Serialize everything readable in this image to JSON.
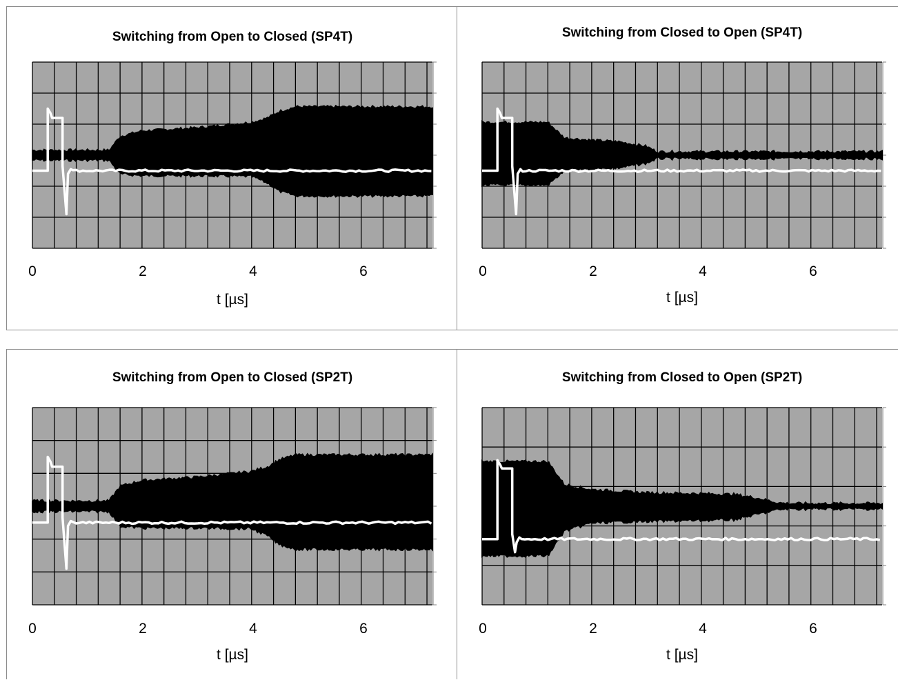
{
  "chart_data": [
    {
      "type": "line",
      "title": "Switching from Open to Closed (SP4T)",
      "xlabel": "t [µs]",
      "xticks": [
        "0",
        "2",
        "4",
        "6"
      ],
      "xlim": [
        0,
        7.3
      ],
      "grid": true,
      "series": [
        {
          "color": "#000000",
          "envelope": {
            "t": [
              0,
              1.4,
              1.6,
              2,
              3,
              4,
              4.3,
              4.5,
              4.8,
              7.3
            ],
            "upper": [
              0.3,
              0.3,
              1.2,
              1.55,
              1.75,
              2.1,
              2.4,
              2.8,
              3.1,
              3.1
            ],
            "lower": [
              -0.3,
              -0.3,
              -1.2,
              -1.3,
              -1.3,
              -1.35,
              -1.8,
              -2.3,
              -2.6,
              -2.6
            ]
          }
        },
        {
          "color": "#ffffff",
          "pulse": {
            "base": -1.0,
            "rise": 0.28,
            "fall": 0.55,
            "overshoot": 3.0,
            "plateau": 2.4,
            "undershoot": -3.8,
            "undershoot_t": 0.62
          }
        }
      ]
    },
    {
      "type": "line",
      "title": "Switching from Closed to Open (SP4T)",
      "xlabel": "t [µs]",
      "xticks": [
        "0",
        "2",
        "4",
        "6"
      ],
      "xlim": [
        0,
        7.3
      ],
      "grid": true,
      "series": [
        {
          "color": "#000000",
          "envelope": {
            "t": [
              0,
              1.2,
              1.5,
              2,
              2.5,
              3,
              3.2,
              7.3
            ],
            "upper": [
              2.1,
              2.1,
              1.1,
              0.95,
              0.85,
              0.55,
              0.2,
              0.2
            ],
            "lower": [
              -1.9,
              -1.9,
              -1.0,
              -0.9,
              -0.8,
              -0.5,
              -0.2,
              -0.2
            ]
          }
        },
        {
          "color": "#ffffff",
          "pulse": {
            "base": -1.0,
            "rise": 0.28,
            "fall": 0.55,
            "overshoot": 3.0,
            "plateau": 2.4,
            "undershoot": -3.8,
            "undershoot_t": 0.62
          }
        }
      ]
    },
    {
      "type": "line",
      "title": "Switching from Open to Closed (SP2T)",
      "xlabel": "t [µs]",
      "xticks": [
        "0",
        "2",
        "4",
        "6"
      ],
      "xlim": [
        0,
        7.3
      ],
      "grid": true,
      "series": [
        {
          "color": "#000000",
          "envelope": {
            "t": [
              0,
              1.4,
              1.6,
              2,
              3,
              4,
              4.3,
              4.5,
              4.8,
              7.3
            ],
            "upper": [
              0.3,
              0.3,
              1.2,
              1.55,
              1.75,
              2.1,
              2.4,
              2.8,
              3.1,
              3.1
            ],
            "lower": [
              -0.3,
              -0.3,
              -1.2,
              -1.3,
              -1.3,
              -1.35,
              -1.8,
              -2.3,
              -2.6,
              -2.6
            ]
          }
        },
        {
          "color": "#ffffff",
          "pulse": {
            "base": -1.0,
            "rise": 0.28,
            "fall": 0.55,
            "overshoot": 3.0,
            "plateau": 2.4,
            "undershoot": -3.8,
            "undershoot_t": 0.62
          }
        }
      ]
    },
    {
      "type": "line",
      "title": "Switching from Closed to Open (SP2T)",
      "xlabel": "t [µs]",
      "xticks": [
        "0",
        "2",
        "4",
        "6"
      ],
      "xlim": [
        0,
        7.3
      ],
      "grid": true,
      "series": [
        {
          "color": "#000000",
          "envelope": {
            "t": [
              0,
              1.2,
              1.5,
              2,
              3,
              4,
              4.6,
              5,
              5.4,
              5.6,
              7.3
            ],
            "upper": [
              2.7,
              2.7,
              1.3,
              1.0,
              0.8,
              0.75,
              0.7,
              0.5,
              0.2,
              0.15,
              0.15
            ],
            "lower": [
              -3.0,
              -3.0,
              -1.5,
              -1.0,
              -0.9,
              -0.85,
              -0.8,
              -0.5,
              -0.2,
              -0.15,
              -0.15
            ]
          }
        },
        {
          "color": "#ffffff",
          "pulse": {
            "base": -2.0,
            "rise": 0.28,
            "fall": 0.55,
            "overshoot": 2.8,
            "plateau": 2.3,
            "undershoot": -2.8,
            "undershoot_t": 0.6
          }
        }
      ]
    }
  ]
}
